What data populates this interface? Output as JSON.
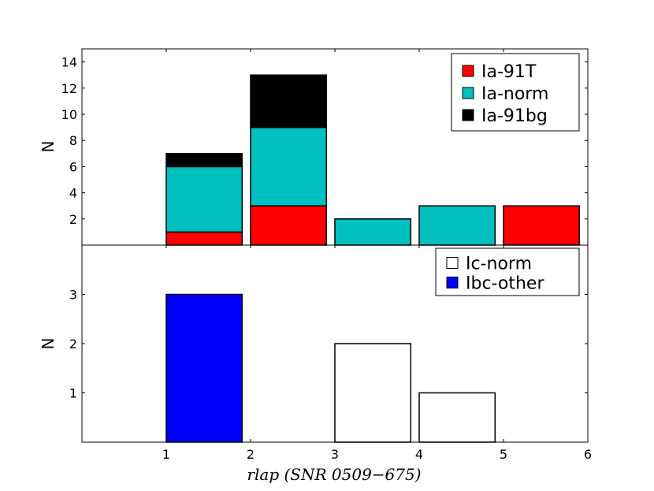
{
  "chart_data": [
    {
      "type": "bar",
      "stacked": true,
      "ylabel": "N",
      "ylim": [
        0,
        15
      ],
      "yticks": [
        2,
        4,
        6,
        8,
        10,
        12,
        14
      ],
      "xlim": [
        0,
        6
      ],
      "bin_edges": [
        1,
        2,
        3,
        4,
        5,
        6
      ],
      "series": [
        {
          "name": "Ia-91T",
          "color": "#ff0000",
          "values": [
            1,
            3,
            0,
            0,
            3
          ]
        },
        {
          "name": "Ia-norm",
          "color": "#00bfbf",
          "values": [
            5,
            6,
            2,
            3,
            0
          ]
        },
        {
          "name": "Ia-91bg",
          "color": "#000000",
          "values": [
            1,
            4,
            0,
            0,
            0
          ]
        }
      ],
      "legend_loc": "top-right"
    },
    {
      "type": "bar",
      "stacked": true,
      "ylabel": "N",
      "ylim": [
        0,
        4
      ],
      "yticks": [
        1,
        2,
        3
      ],
      "xlim": [
        0,
        6
      ],
      "xticks": [
        1,
        2,
        3,
        4,
        5,
        6
      ],
      "bin_edges": [
        1,
        2,
        3,
        4,
        5,
        6
      ],
      "series": [
        {
          "name": "Ic-norm",
          "color": "#ffffff",
          "values": [
            0,
            0,
            2,
            1,
            0
          ]
        },
        {
          "name": "Ibc-other",
          "color": "#0000ff",
          "values": [
            3,
            0,
            0,
            0,
            0
          ]
        }
      ],
      "legend_loc": "top-right"
    }
  ],
  "xlabel": {
    "main": "rlap",
    "detail": "(SNR 0509−675)"
  }
}
